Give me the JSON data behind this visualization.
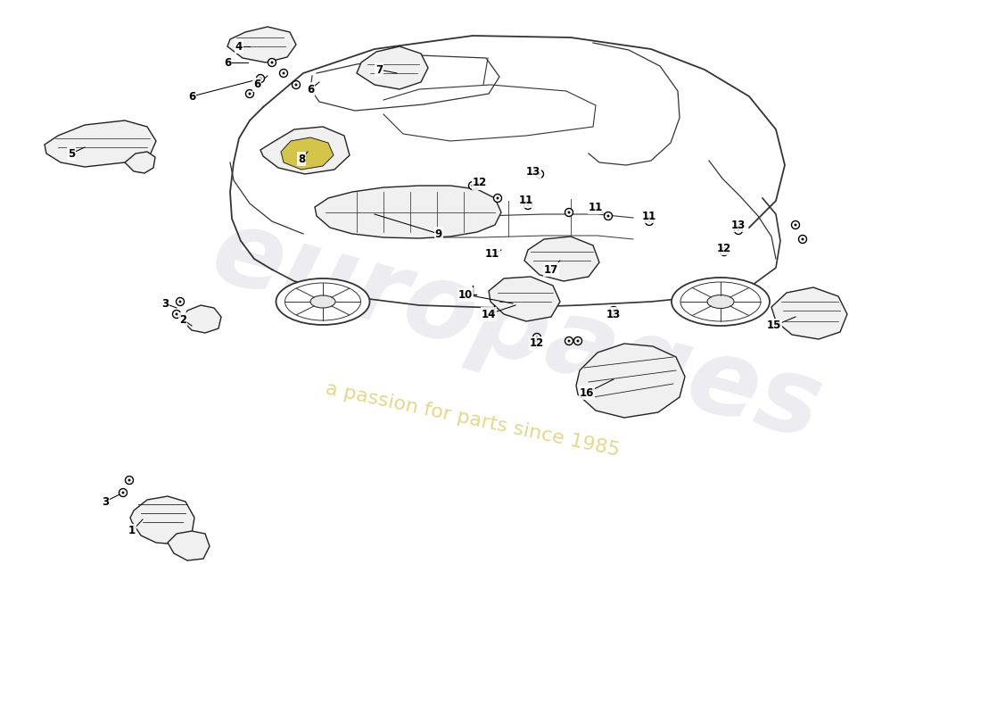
{
  "background_color": "#ffffff",
  "line_color": "#000000",
  "text_color": "#000000",
  "highlight_color": "#d4c44a",
  "watermark_color": "#c8c8d8",
  "watermark_yellow": "#d4c44a",
  "label_fontsize": 8.5,
  "fig_width": 11.0,
  "fig_height": 8.0,
  "dpi": 100,
  "xlim": [
    0,
    1100
  ],
  "ylim": [
    0,
    800
  ],
  "car_outline_color": "#333333",
  "part_fill_color": "#f0f0f0",
  "part_edge_color": "#222222"
}
